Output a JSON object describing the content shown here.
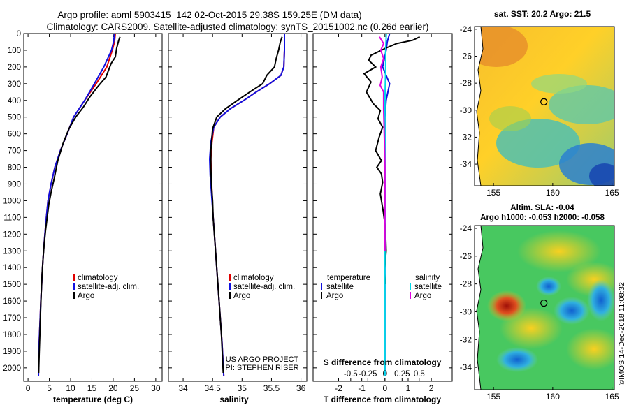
{
  "header": {
    "line1": "Argo profile: aoml 5903415_142 02-Oct-2015 29.38S 159.25E (DM data)",
    "line2": "Climatology: CARS2009. Satellite-adjusted climatology: synTS_20151002.nc (0.26d earlier)"
  },
  "colors": {
    "climatology": "#e00000",
    "satellite": "#1010e0",
    "argo": "#000000",
    "salinity_sat": "#00d8e8",
    "salinity_argo": "#e000e0"
  },
  "chart_data": [
    {
      "type": "line",
      "name": "temperature-profile",
      "xlabel": "temperature (deg C)",
      "ylabel": "",
      "xlim": [
        -1,
        31.5
      ],
      "ylim": [
        2080,
        0
      ],
      "xticks": [
        0,
        5,
        10,
        15,
        20,
        25,
        30
      ],
      "xticklabels": [
        "0",
        "5",
        "10",
        "15",
        "20",
        "25",
        "30"
      ],
      "yticks": [
        0,
        100,
        200,
        300,
        400,
        500,
        600,
        700,
        800,
        900,
        1000,
        1100,
        1200,
        1300,
        1400,
        1500,
        1600,
        1700,
        1800,
        1900,
        2000
      ],
      "yticklabels": [
        "0",
        "100",
        "200",
        "300",
        "400",
        "500",
        "600",
        "700",
        "800",
        "900",
        "1000",
        "1100",
        "1200",
        "1300",
        "1400",
        "1500",
        "1600",
        "1700",
        "1800",
        "1900",
        "2000"
      ],
      "legend": [
        "climatology",
        "satellite-adj. clim.",
        "Argo"
      ],
      "series": [
        {
          "name": "climatology",
          "color": "#e00000",
          "x": [
            20.5,
            20.3,
            19.8,
            18.5,
            16,
            13.3,
            10.7,
            9.2,
            7.6,
            6.3,
            5.4,
            4.7,
            4.3,
            3.95,
            3.65,
            3.4,
            3.2,
            3.0,
            2.85,
            2.7,
            2.55,
            2.45
          ],
          "y": [
            0,
            50,
            100,
            200,
            300,
            400,
            500,
            600,
            700,
            800,
            900,
            1000,
            1100,
            1200,
            1300,
            1400,
            1500,
            1600,
            1700,
            1800,
            1900,
            2050
          ]
        },
        {
          "name": "satellite-adj. clim.",
          "color": "#1010e0",
          "x": [
            20.3,
            20.1,
            19.6,
            17.8,
            15.6,
            13.3,
            10.7,
            9.2,
            7.6,
            6.3,
            5.4,
            4.7,
            4.3,
            3.95,
            3.65,
            3.4,
            3.2,
            3.0,
            2.85,
            2.7,
            2.55,
            2.45
          ],
          "y": [
            0,
            50,
            100,
            200,
            300,
            400,
            500,
            600,
            700,
            800,
            900,
            1000,
            1100,
            1200,
            1300,
            1400,
            1500,
            1600,
            1700,
            1800,
            1900,
            2050
          ]
        },
        {
          "name": "Argo",
          "color": "#000000",
          "x": [
            21.6,
            21.3,
            20.8,
            20.5,
            19.5,
            18.3,
            16.3,
            14.5,
            13.0,
            11.2,
            9.6,
            8.2,
            7.0,
            6.2,
            5.5,
            4.9,
            4.5,
            4.1,
            3.8,
            3.55,
            3.3,
            3.1,
            2.95,
            2.8,
            2.65,
            2.5
          ],
          "y": [
            20,
            40,
            90,
            140,
            180,
            260,
            320,
            380,
            440,
            500,
            570,
            660,
            760,
            860,
            940,
            1020,
            1100,
            1180,
            1260,
            1340,
            1440,
            1550,
            1660,
            1780,
            1900,
            2030
          ]
        }
      ]
    },
    {
      "type": "line",
      "name": "salinity-profile",
      "xlabel": "salinity",
      "ylabel": "",
      "xlim": [
        33.75,
        36.1
      ],
      "ylim": [
        2080,
        0
      ],
      "xticks": [
        34,
        34.5,
        35,
        35.5,
        36
      ],
      "xticklabels": [
        "34",
        "34.5",
        "35",
        "35.5",
        "36"
      ],
      "legend": [
        "climatology",
        "satellite-adj. clim.",
        "Argo"
      ],
      "annotation": [
        "US ARGO PROJECT",
        "PI: STEPHEN RISER"
      ],
      "series": [
        {
          "name": "climatology",
          "color": "#e00000",
          "x": [
            35.72,
            35.72,
            35.71,
            35.66,
            35.47,
            35.24,
            35.03,
            34.8,
            34.63,
            34.52,
            34.49,
            34.47,
            34.48,
            34.49,
            34.5,
            34.52,
            34.54,
            34.56,
            34.58,
            34.6,
            34.62,
            34.64,
            34.66,
            34.69
          ],
          "y": [
            0,
            100,
            200,
            250,
            300,
            350,
            400,
            450,
            500,
            560,
            650,
            750,
            850,
            950,
            1050,
            1150,
            1250,
            1350,
            1450,
            1550,
            1650,
            1750,
            1850,
            2050
          ]
        },
        {
          "name": "satellite-adj. clim.",
          "color": "#1010e0",
          "x": [
            35.72,
            35.72,
            35.71,
            35.66,
            35.47,
            35.24,
            35.03,
            34.8,
            34.63,
            34.52,
            34.47,
            34.45,
            34.46,
            34.48,
            34.5,
            34.52,
            34.54,
            34.56,
            34.58,
            34.6,
            34.62,
            34.64,
            34.66,
            34.69
          ],
          "y": [
            0,
            100,
            200,
            250,
            300,
            350,
            400,
            450,
            500,
            560,
            650,
            750,
            850,
            950,
            1050,
            1150,
            1250,
            1350,
            1450,
            1550,
            1650,
            1750,
            1850,
            2050
          ]
        },
        {
          "name": "Argo",
          "color": "#000000",
          "x": [
            35.68,
            35.65,
            35.62,
            35.58,
            35.55,
            35.42,
            35.35,
            35.13,
            34.92,
            34.72,
            34.57,
            34.5,
            34.47,
            34.47,
            34.48,
            34.5,
            34.51,
            34.53,
            34.55,
            34.57,
            34.59,
            34.61,
            34.63,
            34.65,
            34.68
          ],
          "y": [
            20,
            50,
            100,
            150,
            200,
            250,
            300,
            350,
            400,
            450,
            500,
            570,
            700,
            800,
            900,
            1000,
            1100,
            1200,
            1300,
            1400,
            1500,
            1600,
            1700,
            1800,
            2030
          ]
        }
      ]
    },
    {
      "type": "line",
      "name": "difference-profile",
      "xlabel": "T difference from climatology",
      "ylabel": "",
      "title_bottom": "S difference from climatology",
      "xlim": [
        -3.1,
        2.9
      ],
      "ylim": [
        2080,
        0
      ],
      "xticks": [
        -2,
        -1,
        0,
        1,
        2
      ],
      "xticklabels": [
        "-2",
        "-1",
        "0",
        "1",
        "2"
      ],
      "sticks": [
        -0.5,
        -0.25,
        0,
        0.25,
        0.5
      ],
      "sticklabels": [
        "-0.5",
        "-0.25",
        "0",
        "0.25",
        "0.5"
      ],
      "legend_left": [
        "temperature",
        "satellite",
        "Argo"
      ],
      "legend_right": [
        "salinity",
        "satellite",
        "Argo"
      ],
      "series": [
        {
          "name": "T satellite",
          "color": "#1010e0",
          "x": [
            0.2,
            0.1,
            0.05,
            -0.1,
            0.2,
            0.05,
            0,
            0,
            0,
            0,
            0,
            0,
            0,
            0,
            0,
            0,
            0,
            0,
            0,
            0,
            0,
            0
          ],
          "y": [
            0,
            50,
            100,
            200,
            300,
            400,
            500,
            600,
            700,
            800,
            900,
            1000,
            1100,
            1200,
            1300,
            1400,
            1500,
            1600,
            1700,
            1800,
            1900,
            2050
          ]
        },
        {
          "name": "T Argo",
          "color": "#000000",
          "x": [
            1.5,
            1.2,
            0.5,
            0,
            -0.6,
            -0.7,
            -0.4,
            -0.9,
            -0.6,
            -0.8,
            -0.5,
            -0.2,
            -0.3,
            -0.1,
            -0.25,
            -0.4,
            -0.15,
            -0.35,
            -0.15,
            -0.1,
            -0.2,
            -0.08,
            0.02,
            0.05,
            -0.02,
            0.02
          ],
          "y": [
            20,
            40,
            60,
            90,
            130,
            160,
            200,
            240,
            290,
            350,
            420,
            460,
            510,
            560,
            620,
            700,
            760,
            800,
            840,
            890,
            960,
            1060,
            1160,
            1300,
            1420,
            1500
          ]
        },
        {
          "name": "S satellite",
          "color": "#00d8e8",
          "x": [
            0.02,
            0.01,
            0.01,
            0,
            0,
            0,
            0,
            0,
            0,
            0
          ],
          "y": [
            0,
            100,
            200,
            400,
            800,
            1200,
            1500,
            1700,
            1900,
            2050
          ]
        },
        {
          "name": "S Argo",
          "color": "#e000e0",
          "x": [
            -0.08,
            -0.02,
            -0.06,
            -0.02,
            -0.06,
            -0.04,
            -0.07,
            -0.02,
            -0.02,
            -0.01,
            0,
            0,
            0
          ],
          "y": [
            20,
            60,
            100,
            150,
            200,
            260,
            310,
            350,
            450,
            600,
            800,
            1000,
            1300
          ]
        }
      ]
    },
    {
      "type": "heatmap",
      "name": "sst-map",
      "title": "sat. SST: 20.2 Argo: 21.5",
      "xlim": [
        153.4,
        165.2
      ],
      "ylim": [
        -35.6,
        -23.8
      ],
      "xticks": [
        155,
        160,
        165
      ],
      "xticklabels": [
        "155",
        "160",
        "165"
      ],
      "yticks": [
        -24,
        -26,
        -28,
        -30,
        -32,
        -34
      ],
      "yticklabels": [
        "-24",
        "-26",
        "-28",
        "-30",
        "-32",
        "-34"
      ],
      "float": [
        159.25,
        -29.38
      ]
    },
    {
      "type": "heatmap",
      "name": "sla-map",
      "title": "Altim. SLA: -0.04",
      "subtitle": "Argo h1000: -0.053 h2000: -0.058",
      "xlim": [
        153.4,
        165.2
      ],
      "ylim": [
        -35.6,
        -23.8
      ],
      "xticks": [
        155,
        160,
        165
      ],
      "xticklabels": [
        "155",
        "160",
        "165"
      ],
      "yticks": [
        -24,
        -26,
        -28,
        -30,
        -32,
        -34
      ],
      "yticklabels": [
        "-24",
        "-26",
        "-28",
        "-30",
        "-32",
        "-34"
      ],
      "float": [
        159.25,
        -29.38
      ]
    }
  ],
  "footer": {
    "credit": "©IMOS 14-Dec-2018 11:08:32"
  }
}
